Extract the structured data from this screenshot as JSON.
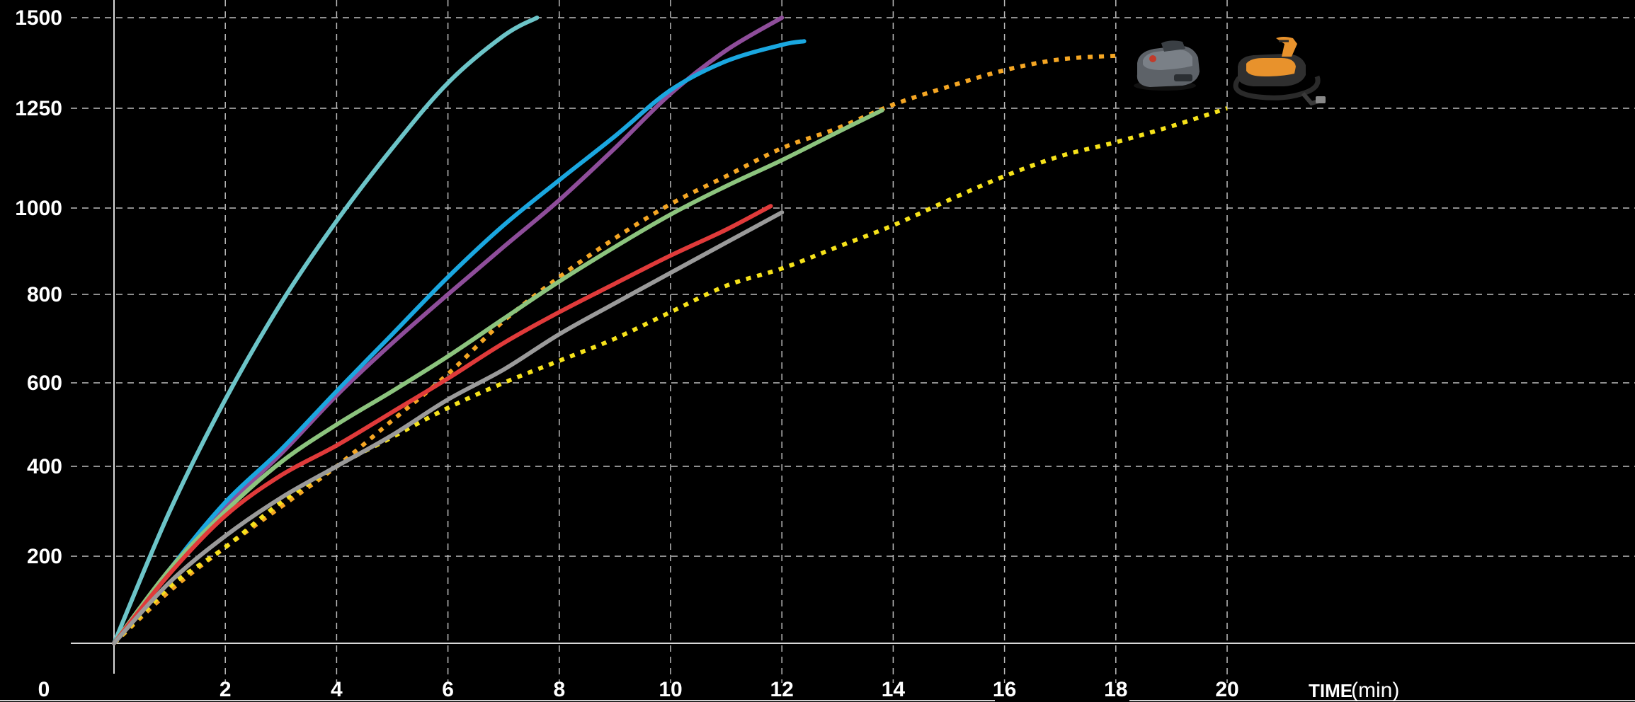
{
  "chart_data": {
    "type": "line",
    "title": "",
    "xlabel": "TIME",
    "xlabel_unit": "(min)",
    "ylabel": "",
    "xlim": [
      0,
      20
    ],
    "y_ticks": [
      {
        "value": 200,
        "label": "200"
      },
      {
        "value": 400,
        "label": "400"
      },
      {
        "value": 600,
        "label": "600"
      },
      {
        "value": 800,
        "label": "800"
      },
      {
        "value": 1000,
        "label": "1000"
      },
      {
        "value": 1250,
        "label": "1250"
      },
      {
        "value": 1500,
        "label": "1500"
      }
    ],
    "x_ticks": [
      {
        "value": 0,
        "label": "0"
      },
      {
        "value": 2,
        "label": "2"
      },
      {
        "value": 4,
        "label": "4"
      },
      {
        "value": 6,
        "label": "6"
      },
      {
        "value": 8,
        "label": "8"
      },
      {
        "value": 10,
        "label": "10"
      },
      {
        "value": 12,
        "label": "12"
      },
      {
        "value": 14,
        "label": "14"
      },
      {
        "value": 16,
        "label": "16"
      },
      {
        "value": 18,
        "label": "18"
      },
      {
        "value": 20,
        "label": "20"
      }
    ],
    "grid": true,
    "legend": "none",
    "series": [
      {
        "color": "#6cc4c8",
        "style": "solid",
        "x": [
          0,
          1,
          2,
          3,
          4,
          5,
          6,
          7,
          7.6
        ],
        "y": [
          0,
          300,
          560,
          780,
          970,
          1150,
          1320,
          1450,
          1500
        ]
      },
      {
        "color": "#8e4d9a",
        "style": "solid",
        "x": [
          0,
          1,
          2,
          3,
          4,
          5,
          6,
          7,
          8,
          9,
          10,
          11,
          12
        ],
        "y": [
          0,
          170,
          310,
          430,
          570,
          690,
          800,
          910,
          1020,
          1150,
          1290,
          1410,
          1500
        ]
      },
      {
        "color": "#1aa7e0",
        "style": "solid",
        "x": [
          0,
          1,
          2,
          3,
          4,
          5,
          6,
          7,
          8,
          9,
          10,
          11,
          12,
          12.4
        ],
        "y": [
          0,
          170,
          320,
          440,
          580,
          710,
          840,
          960,
          1070,
          1180,
          1300,
          1380,
          1425,
          1435
        ]
      },
      {
        "color": "#8cc47e",
        "style": "solid",
        "x": [
          0,
          1,
          2,
          3,
          4,
          5,
          6,
          7,
          8,
          9,
          10,
          11,
          12,
          13,
          13.8
        ],
        "y": [
          0,
          170,
          300,
          410,
          500,
          580,
          660,
          745,
          830,
          910,
          985,
          1055,
          1120,
          1190,
          1245
        ]
      },
      {
        "color": "#e03a3a",
        "style": "solid",
        "x": [
          0,
          1,
          2,
          3,
          4,
          5,
          6,
          7,
          8,
          9,
          10,
          11,
          11.8
        ],
        "y": [
          0,
          160,
          290,
          380,
          450,
          530,
          610,
          690,
          760,
          825,
          890,
          950,
          1005
        ]
      },
      {
        "color": "#9a9a9a",
        "style": "solid",
        "x": [
          0,
          1,
          2,
          3,
          4,
          5,
          6,
          7,
          8,
          9,
          10,
          11,
          12
        ],
        "y": [
          0,
          140,
          245,
          330,
          400,
          475,
          560,
          630,
          710,
          780,
          850,
          920,
          990
        ]
      },
      {
        "color": "#f5a623",
        "style": "dotted",
        "x": [
          0,
          1,
          2,
          3,
          4,
          5,
          6,
          7,
          8,
          9,
          10,
          11,
          12,
          13,
          14,
          15,
          16,
          17,
          18
        ],
        "y": [
          0,
          120,
          220,
          310,
          400,
          510,
          620,
          740,
          840,
          930,
          1010,
          1080,
          1150,
          1200,
          1260,
          1310,
          1355,
          1385,
          1395
        ]
      },
      {
        "color": "#f6e21a",
        "style": "dotted",
        "x": [
          0,
          1,
          2,
          3,
          4,
          5,
          6,
          7,
          8,
          9,
          10,
          11,
          12,
          13,
          14,
          15,
          16,
          17,
          18,
          19,
          20
        ],
        "y": [
          0,
          130,
          220,
          320,
          400,
          470,
          540,
          600,
          650,
          700,
          760,
          820,
          860,
          910,
          960,
          1020,
          1080,
          1130,
          1165,
          1205,
          1250
        ]
      }
    ]
  },
  "pump_images": [
    {
      "icon": "electric-pump-gray-icon",
      "colors": [
        "#5d6268",
        "#2b2f33",
        "#c23b2b"
      ]
    },
    {
      "icon": "electric-pump-orange-icon",
      "colors": [
        "#e8922c",
        "#2a2a2a"
      ]
    }
  ]
}
